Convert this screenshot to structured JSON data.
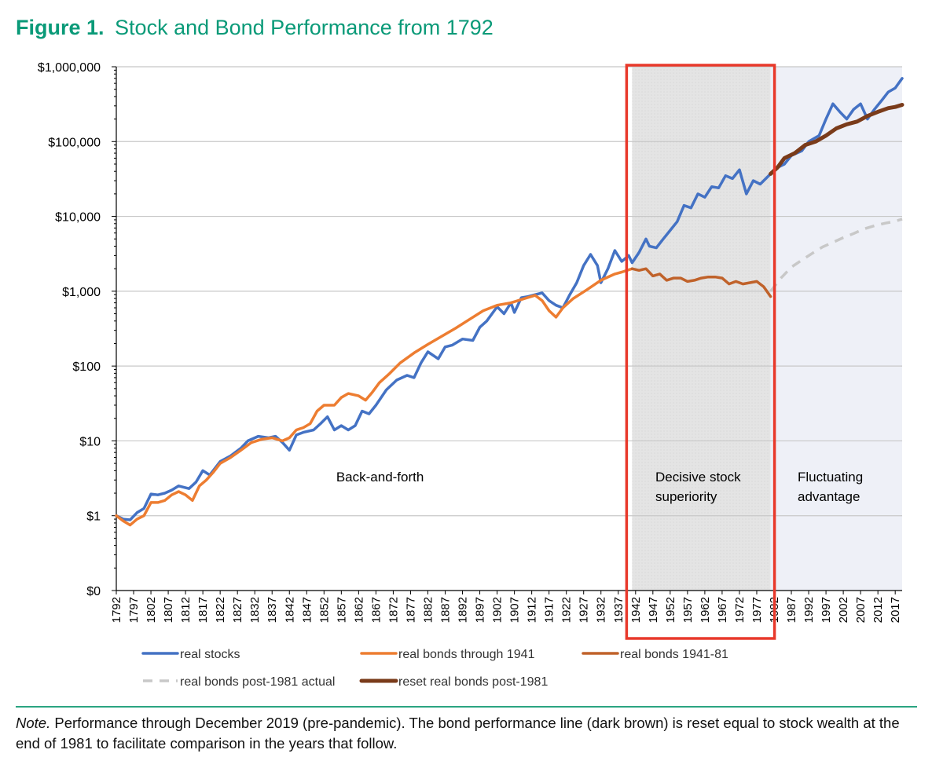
{
  "figure": {
    "label": "Figure 1.",
    "title": "Stock and Bond Performance from 1792"
  },
  "note": {
    "label": "Note.",
    "text": "Performance through December 2019 (pre-pandemic). The bond performance line (dark brown) is reset equal to stock wealth at the end of 1981 to facilitate comparison in the years that follow."
  },
  "chart_data": {
    "type": "line",
    "yscale": "log",
    "ylim": [
      0.1,
      1000000
    ],
    "xlim": [
      1792,
      2019
    ],
    "y_ticks": [
      {
        "value": 0.1,
        "label": "$0"
      },
      {
        "value": 1,
        "label": "$1"
      },
      {
        "value": 10,
        "label": "$10"
      },
      {
        "value": 100,
        "label": "$100"
      },
      {
        "value": 1000,
        "label": "$1,000"
      },
      {
        "value": 10000,
        "label": "$10,000"
      },
      {
        "value": 100000,
        "label": "$100,000"
      },
      {
        "value": 1000000,
        "label": "$1,000,000"
      }
    ],
    "x_ticks": [
      "1792",
      "1797",
      "1802",
      "1807",
      "1812",
      "1817",
      "1822",
      "1827",
      "1832",
      "1837",
      "1842",
      "1847",
      "1852",
      "1857",
      "1862",
      "1867",
      "1872",
      "1877",
      "1882",
      "1887",
      "1892",
      "1897",
      "1902",
      "1907",
      "1912",
      "1917",
      "1922",
      "1927",
      "1932",
      "1937",
      "1942",
      "1947",
      "1952",
      "1957",
      "1962",
      "1967",
      "1972",
      "1977",
      "1982",
      "1987",
      "1992",
      "1997",
      "2002",
      "2007",
      "2012",
      "2017"
    ],
    "regions": [
      {
        "name": "decisive",
        "from": 1941,
        "to": 1981,
        "fill": "#e6e6e6",
        "label_lines": [
          "Decisive stock",
          "superiority"
        ],
        "highlight": "#e8392b"
      },
      {
        "name": "fluctuating",
        "from": 1981,
        "to": 2019,
        "fill": "#eef0f7",
        "label_lines": [
          "Fluctuating",
          "advantage"
        ]
      }
    ],
    "period_labels": [
      {
        "text": "Back-and-forth",
        "x": 1865,
        "y": 0.75
      }
    ],
    "series": [
      {
        "name": "real stocks",
        "color": "#4472c4",
        "width": 3.5,
        "dash": "none",
        "points": [
          [
            1792,
            1
          ],
          [
            1794,
            0.9
          ],
          [
            1796,
            0.88
          ],
          [
            1798,
            1.1
          ],
          [
            1800,
            1.25
          ],
          [
            1802,
            1.95
          ],
          [
            1804,
            1.9
          ],
          [
            1806,
            2.0
          ],
          [
            1808,
            2.2
          ],
          [
            1810,
            2.5
          ],
          [
            1813,
            2.3
          ],
          [
            1815,
            2.8
          ],
          [
            1817,
            4.0
          ],
          [
            1819,
            3.5
          ],
          [
            1822,
            5.3
          ],
          [
            1825,
            6.3
          ],
          [
            1828,
            8.0
          ],
          [
            1830,
            10
          ],
          [
            1833,
            11.5
          ],
          [
            1836,
            11
          ],
          [
            1838,
            11.5
          ],
          [
            1840,
            9.5
          ],
          [
            1842,
            7.5
          ],
          [
            1844,
            12
          ],
          [
            1846,
            13
          ],
          [
            1849,
            14
          ],
          [
            1851,
            17
          ],
          [
            1853,
            21
          ],
          [
            1855,
            14
          ],
          [
            1857,
            16
          ],
          [
            1859,
            14
          ],
          [
            1861,
            16
          ],
          [
            1863,
            25
          ],
          [
            1865,
            23
          ],
          [
            1867,
            30
          ],
          [
            1870,
            48
          ],
          [
            1873,
            65
          ],
          [
            1876,
            75
          ],
          [
            1878,
            70
          ],
          [
            1880,
            110
          ],
          [
            1882,
            155
          ],
          [
            1885,
            125
          ],
          [
            1887,
            180
          ],
          [
            1889,
            190
          ],
          [
            1892,
            230
          ],
          [
            1895,
            220
          ],
          [
            1897,
            330
          ],
          [
            1899,
            400
          ],
          [
            1902,
            620
          ],
          [
            1904,
            500
          ],
          [
            1906,
            700
          ],
          [
            1907,
            520
          ],
          [
            1909,
            820
          ],
          [
            1911,
            850
          ],
          [
            1913,
            900
          ],
          [
            1915,
            950
          ],
          [
            1917,
            750
          ],
          [
            1919,
            650
          ],
          [
            1921,
            600
          ],
          [
            1923,
            900
          ],
          [
            1925,
            1300
          ],
          [
            1927,
            2200
          ],
          [
            1929,
            3100
          ],
          [
            1931,
            2200
          ],
          [
            1932,
            1300
          ],
          [
            1934,
            2000
          ],
          [
            1936,
            3500
          ],
          [
            1938,
            2500
          ],
          [
            1940,
            3000
          ],
          [
            1941,
            2400
          ],
          [
            1943,
            3300
          ],
          [
            1945,
            5000
          ],
          [
            1946,
            4000
          ],
          [
            1948,
            3800
          ],
          [
            1950,
            5000
          ],
          [
            1952,
            6500
          ],
          [
            1954,
            8500
          ],
          [
            1956,
            14000
          ],
          [
            1958,
            13000
          ],
          [
            1960,
            20000
          ],
          [
            1962,
            18000
          ],
          [
            1964,
            25000
          ],
          [
            1966,
            24000
          ],
          [
            1968,
            35000
          ],
          [
            1970,
            32000
          ],
          [
            1972,
            42000
          ],
          [
            1974,
            20000
          ],
          [
            1976,
            30000
          ],
          [
            1978,
            27000
          ],
          [
            1981,
            37000
          ],
          [
            1983,
            45000
          ],
          [
            1985,
            50000
          ],
          [
            1987,
            65000
          ],
          [
            1990,
            75000
          ],
          [
            1992,
            100000
          ],
          [
            1995,
            120000
          ],
          [
            1997,
            200000
          ],
          [
            1999,
            320000
          ],
          [
            2001,
            250000
          ],
          [
            2003,
            200000
          ],
          [
            2005,
            270000
          ],
          [
            2007,
            320000
          ],
          [
            2009,
            200000
          ],
          [
            2011,
            270000
          ],
          [
            2013,
            350000
          ],
          [
            2015,
            460000
          ],
          [
            2017,
            520000
          ],
          [
            2019,
            700000
          ]
        ]
      },
      {
        "name": "real bonds through 1941",
        "color": "#ed7d31",
        "width": 3.5,
        "dash": "none",
        "points": [
          [
            1792,
            1
          ],
          [
            1794,
            0.85
          ],
          [
            1796,
            0.75
          ],
          [
            1798,
            0.9
          ],
          [
            1800,
            1.0
          ],
          [
            1802,
            1.5
          ],
          [
            1804,
            1.5
          ],
          [
            1806,
            1.6
          ],
          [
            1808,
            1.9
          ],
          [
            1810,
            2.1
          ],
          [
            1812,
            1.9
          ],
          [
            1814,
            1.6
          ],
          [
            1816,
            2.5
          ],
          [
            1818,
            3.0
          ],
          [
            1820,
            3.8
          ],
          [
            1822,
            5.0
          ],
          [
            1825,
            6.0
          ],
          [
            1828,
            7.5
          ],
          [
            1831,
            9.5
          ],
          [
            1834,
            10.5
          ],
          [
            1837,
            11
          ],
          [
            1840,
            10
          ],
          [
            1842,
            11
          ],
          [
            1844,
            14
          ],
          [
            1846,
            15
          ],
          [
            1848,
            17
          ],
          [
            1850,
            25
          ],
          [
            1852,
            30
          ],
          [
            1855,
            30
          ],
          [
            1857,
            38
          ],
          [
            1859,
            43
          ],
          [
            1862,
            40
          ],
          [
            1864,
            35
          ],
          [
            1866,
            45
          ],
          [
            1868,
            60
          ],
          [
            1871,
            80
          ],
          [
            1874,
            110
          ],
          [
            1878,
            150
          ],
          [
            1882,
            195
          ],
          [
            1886,
            250
          ],
          [
            1890,
            320
          ],
          [
            1894,
            420
          ],
          [
            1898,
            550
          ],
          [
            1902,
            650
          ],
          [
            1906,
            700
          ],
          [
            1910,
            800
          ],
          [
            1913,
            880
          ],
          [
            1915,
            750
          ],
          [
            1917,
            550
          ],
          [
            1919,
            450
          ],
          [
            1921,
            600
          ],
          [
            1924,
            800
          ],
          [
            1928,
            1050
          ],
          [
            1932,
            1400
          ],
          [
            1936,
            1700
          ],
          [
            1938,
            1800
          ],
          [
            1941,
            2000
          ]
        ]
      },
      {
        "name": "real bonds 1941-81",
        "color": "#c0622a",
        "width": 3.5,
        "dash": "none",
        "points": [
          [
            1941,
            2000
          ],
          [
            1943,
            1900
          ],
          [
            1945,
            2000
          ],
          [
            1947,
            1600
          ],
          [
            1949,
            1700
          ],
          [
            1951,
            1400
          ],
          [
            1953,
            1500
          ],
          [
            1955,
            1500
          ],
          [
            1957,
            1350
          ],
          [
            1959,
            1400
          ],
          [
            1961,
            1500
          ],
          [
            1963,
            1550
          ],
          [
            1965,
            1550
          ],
          [
            1967,
            1500
          ],
          [
            1969,
            1250
          ],
          [
            1971,
            1350
          ],
          [
            1973,
            1250
          ],
          [
            1975,
            1300
          ],
          [
            1977,
            1350
          ],
          [
            1979,
            1150
          ],
          [
            1981,
            850
          ]
        ]
      },
      {
        "name": "real bonds post-1981 actual",
        "color": "#c8c8c8",
        "width": 3.5,
        "dash": "12,9",
        "points": [
          [
            1981,
            1000
          ],
          [
            1984,
            1500
          ],
          [
            1987,
            2100
          ],
          [
            1990,
            2600
          ],
          [
            1993,
            3200
          ],
          [
            1996,
            3900
          ],
          [
            1999,
            4500
          ],
          [
            2002,
            5200
          ],
          [
            2005,
            5900
          ],
          [
            2008,
            6800
          ],
          [
            2011,
            7500
          ],
          [
            2014,
            8100
          ],
          [
            2017,
            8600
          ],
          [
            2019,
            9200
          ]
        ]
      },
      {
        "name": "reset real bonds post-1981",
        "color": "#7a3b1a",
        "width": 5,
        "dash": "none",
        "points": [
          [
            1981,
            37000
          ],
          [
            1983,
            45000
          ],
          [
            1985,
            60000
          ],
          [
            1988,
            70000
          ],
          [
            1991,
            90000
          ],
          [
            1994,
            100000
          ],
          [
            1997,
            120000
          ],
          [
            2000,
            150000
          ],
          [
            2003,
            170000
          ],
          [
            2006,
            185000
          ],
          [
            2009,
            220000
          ],
          [
            2012,
            250000
          ],
          [
            2015,
            280000
          ],
          [
            2017,
            290000
          ],
          [
            2019,
            310000
          ]
        ]
      }
    ],
    "legend": [
      {
        "label": "real stocks",
        "color": "#4472c4",
        "dash": "none"
      },
      {
        "label": "real bonds through 1941",
        "color": "#ed7d31",
        "dash": "none"
      },
      {
        "label": "real bonds 1941-81",
        "color": "#c0622a",
        "dash": "none"
      },
      {
        "label": "real bonds post-1981 actual",
        "color": "#c8c8c8",
        "dash": "12,9"
      },
      {
        "label": "reset real bonds post-1981",
        "color": "#7a3b1a",
        "dash": "none"
      }
    ]
  }
}
